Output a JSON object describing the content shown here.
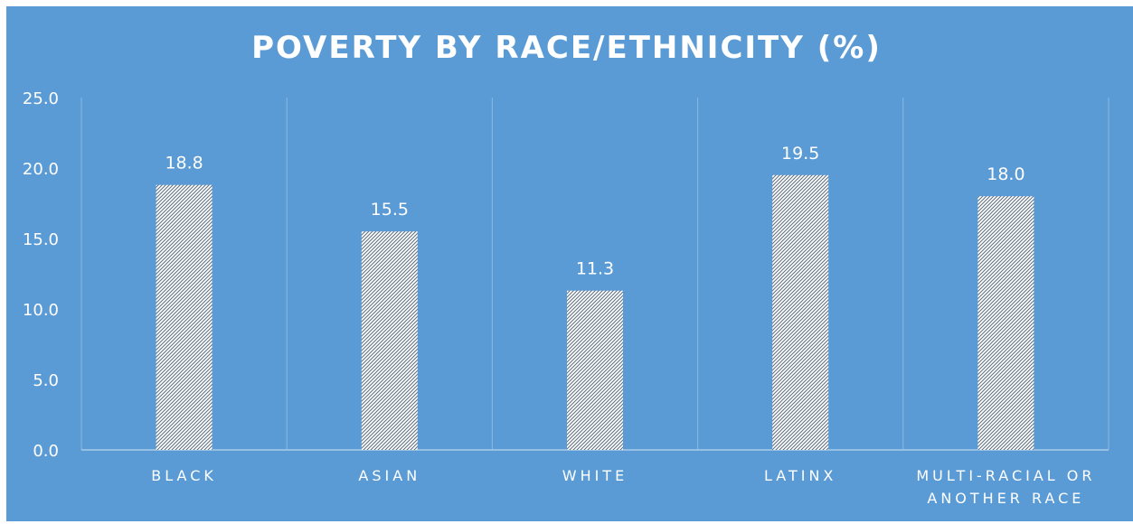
{
  "chart_data": {
    "type": "bar",
    "title": "POVERTY BY RACE/ETHNICITY (%)",
    "categories": [
      "BLACK",
      "ASIAN",
      "WHITE",
      "LATINX",
      "MULTI-RACIAL OR ANOTHER RACE"
    ],
    "category_lines": [
      [
        "BLACK"
      ],
      [
        "ASIAN"
      ],
      [
        "WHITE"
      ],
      [
        "LATINX"
      ],
      [
        "MULTI-RACIAL OR",
        "ANOTHER RACE"
      ]
    ],
    "values": [
      18.8,
      15.5,
      11.3,
      19.5,
      18.0
    ],
    "data_labels": [
      "18.8",
      "15.5",
      "11.3",
      "19.5",
      "18.0"
    ],
    "ylim": [
      0,
      25
    ],
    "yticks": [
      "0.0",
      "5.0",
      "10.0",
      "15.0",
      "20.0",
      "25.0"
    ],
    "xlabel": "",
    "ylabel": "",
    "grid": "vertical",
    "colors": {
      "background": "#5b9bd5",
      "bar_fill": "#ffffff",
      "bar_hatch": "#5b6b7a",
      "text": "#ffffff",
      "gridline": "#8ab8e2",
      "axis": "#a9cbea"
    }
  }
}
